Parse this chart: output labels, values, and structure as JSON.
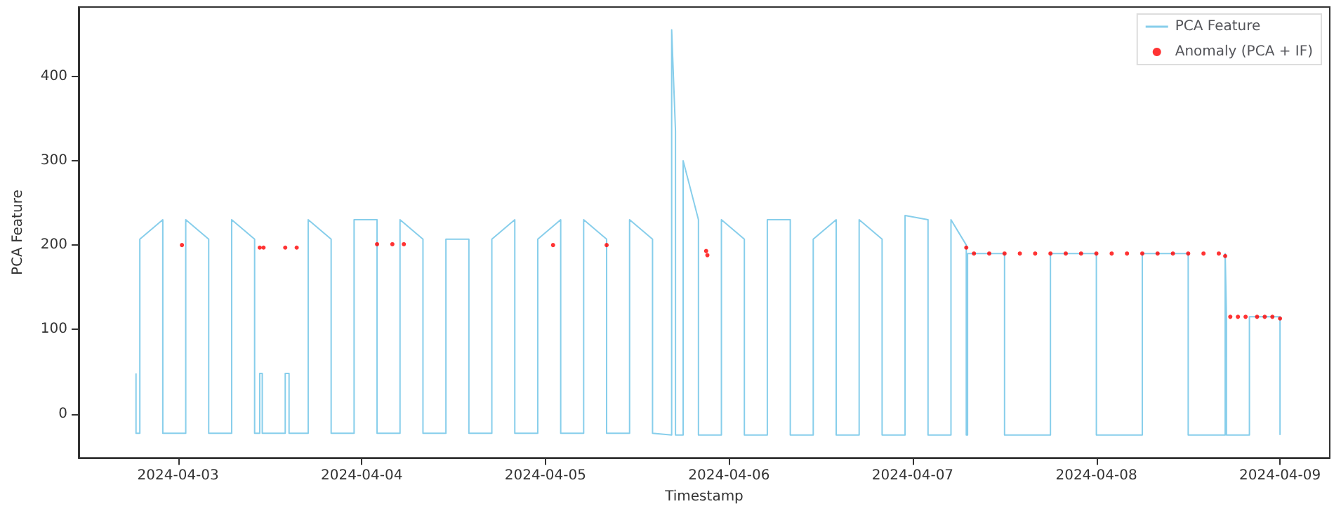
{
  "chart_data": {
    "type": "line",
    "xlabel": "Timestamp",
    "ylabel": "PCA Feature",
    "legend": "top right",
    "grid": false,
    "xlim": [
      "2024-04-02T11:00",
      "2024-04-09T06:30"
    ],
    "xticks": [
      "2024-04-03",
      "2024-04-04",
      "2024-04-05",
      "2024-04-06",
      "2024-04-07",
      "2024-04-08",
      "2024-04-09"
    ],
    "ylim": [
      -52,
      482
    ],
    "yticks": [
      0,
      100,
      200,
      300,
      400
    ],
    "series": [
      {
        "name": "PCA Feature",
        "type": "line",
        "color": "#87ceeb",
        "marker": "none",
        "line_style": "solid",
        "x": [
          "2024-04-02T18:30",
          "2024-04-02T18:30",
          "2024-04-02T19:00",
          "2024-04-02T19:00",
          "2024-04-02T22:00",
          "2024-04-02T22:00",
          "2024-04-03T01:00",
          "2024-04-03T01:00",
          "2024-04-03T04:00",
          "2024-04-03T04:00",
          "2024-04-03T07:00",
          "2024-04-03T07:00",
          "2024-04-03T10:00",
          "2024-04-03T10:00",
          "2024-04-03T10:40",
          "2024-04-03T10:40",
          "2024-04-03T11:00",
          "2024-04-03T11:00",
          "2024-04-03T14:00",
          "2024-04-03T14:00",
          "2024-04-03T14:30",
          "2024-04-03T14:30",
          "2024-04-03T17:00",
          "2024-04-03T17:00",
          "2024-04-03T20:00",
          "2024-04-03T20:00",
          "2024-04-03T23:00",
          "2024-04-03T23:00",
          "2024-04-04T02:00",
          "2024-04-04T02:00",
          "2024-04-04T05:00",
          "2024-04-04T05:00",
          "2024-04-04T08:00",
          "2024-04-04T08:00",
          "2024-04-04T11:00",
          "2024-04-04T11:00",
          "2024-04-04T14:00",
          "2024-04-04T14:00",
          "2024-04-04T17:00",
          "2024-04-04T17:00",
          "2024-04-04T20:00",
          "2024-04-04T20:00",
          "2024-04-04T23:00",
          "2024-04-04T23:00",
          "2024-04-05T02:00",
          "2024-04-05T02:00",
          "2024-04-05T05:00",
          "2024-04-05T05:00",
          "2024-04-05T08:00",
          "2024-04-05T08:00",
          "2024-04-05T11:00",
          "2024-04-05T11:00",
          "2024-04-05T14:00",
          "2024-04-05T14:00",
          "2024-04-05T16:30",
          "2024-04-05T16:30",
          "2024-04-05T17:00",
          "2024-04-05T17:00",
          "2024-04-05T18:00",
          "2024-04-05T18:00",
          "2024-04-05T20:00",
          "2024-04-05T20:00",
          "2024-04-05T23:00",
          "2024-04-05T23:00",
          "2024-04-06T02:00",
          "2024-04-06T02:00",
          "2024-04-06T05:00",
          "2024-04-06T05:00",
          "2024-04-06T08:00",
          "2024-04-06T08:00",
          "2024-04-06T11:00",
          "2024-04-06T11:00",
          "2024-04-06T14:00",
          "2024-04-06T14:00",
          "2024-04-06T17:00",
          "2024-04-06T17:00",
          "2024-04-06T20:00",
          "2024-04-06T20:00",
          "2024-04-06T23:00",
          "2024-04-06T23:00",
          "2024-04-07T02:00",
          "2024-04-07T02:00",
          "2024-04-07T05:00",
          "2024-04-07T05:00",
          "2024-04-07T07:00",
          "2024-04-07T07:00",
          "2024-04-07T07:10",
          "2024-04-07T07:10",
          "2024-04-07T12:00",
          "2024-04-07T12:00",
          "2024-04-07T18:00",
          "2024-04-07T18:00",
          "2024-04-08T00:00",
          "2024-04-08T00:00",
          "2024-04-08T06:00",
          "2024-04-08T06:00",
          "2024-04-08T12:00",
          "2024-04-08T12:00",
          "2024-04-08T16:50",
          "2024-04-08T16:50",
          "2024-04-08T17:00",
          "2024-04-08T17:00",
          "2024-04-08T20:00",
          "2024-04-08T20:00",
          "2024-04-09T00:00",
          "2024-04-09T00:00"
        ],
        "values": [
          48,
          -23,
          -23,
          207,
          230,
          -23,
          -23,
          230,
          207,
          -23,
          -23,
          230,
          207,
          -23,
          -23,
          48,
          48,
          -23,
          -23,
          48,
          48,
          -23,
          -23,
          230,
          207,
          -23,
          -23,
          230,
          230,
          -23,
          -23,
          230,
          207,
          -23,
          -23,
          207,
          207,
          -23,
          -23,
          207,
          230,
          -23,
          -23,
          207,
          230,
          -23,
          -23,
          230,
          207,
          -23,
          -23,
          230,
          207,
          -23,
          -25,
          455,
          335,
          -25,
          -25,
          300,
          230,
          -25,
          -25,
          230,
          207,
          -25,
          -25,
          230,
          230,
          -25,
          -25,
          207,
          230,
          -25,
          -25,
          230,
          207,
          -25,
          -25,
          235,
          230,
          -25,
          -25,
          230,
          200,
          -25,
          -25,
          190,
          190,
          -25,
          -25,
          190,
          190,
          -25,
          -25,
          190,
          190,
          -25,
          -25,
          190,
          115,
          -25,
          -25,
          115,
          115,
          -25
        ]
      },
      {
        "name": "Anomaly (PCA + IF)",
        "type": "scatter",
        "color": "#ff0000",
        "marker": "circle",
        "x": [
          "2024-04-03T00:30",
          "2024-04-03T10:40",
          "2024-04-03T11:10",
          "2024-04-03T14:00",
          "2024-04-03T15:30",
          "2024-04-04T02:00",
          "2024-04-04T04:00",
          "2024-04-04T05:30",
          "2024-04-05T01:00",
          "2024-04-05T08:00",
          "2024-04-05T21:00",
          "2024-04-05T21:10",
          "2024-04-07T07:00",
          "2024-04-07T08:00",
          "2024-04-07T10:00",
          "2024-04-07T12:00",
          "2024-04-07T14:00",
          "2024-04-07T16:00",
          "2024-04-07T18:00",
          "2024-04-07T20:00",
          "2024-04-07T22:00",
          "2024-04-08T00:00",
          "2024-04-08T02:00",
          "2024-04-08T04:00",
          "2024-04-08T06:00",
          "2024-04-08T08:00",
          "2024-04-08T10:00",
          "2024-04-08T12:00",
          "2024-04-08T14:00",
          "2024-04-08T16:00",
          "2024-04-08T16:50",
          "2024-04-08T17:30",
          "2024-04-08T18:30",
          "2024-04-08T19:30",
          "2024-04-08T21:00",
          "2024-04-08T22:00",
          "2024-04-08T23:00",
          "2024-04-09T00:00"
        ],
        "values": [
          200,
          197,
          197,
          197,
          197,
          201,
          201,
          201,
          200,
          200,
          193,
          188,
          197,
          190,
          190,
          190,
          190,
          190,
          190,
          190,
          190,
          190,
          190,
          190,
          190,
          190,
          190,
          190,
          190,
          190,
          187,
          115,
          115,
          115,
          115,
          115,
          115,
          113
        ]
      }
    ]
  }
}
